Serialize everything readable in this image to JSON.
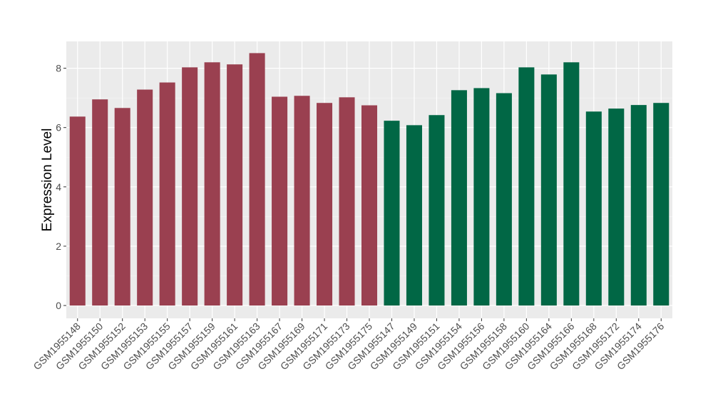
{
  "chart_data": {
    "type": "bar",
    "title": "",
    "xlabel": "",
    "ylabel": "Expression Level",
    "ylim": [
      -0.3,
      8.9
    ],
    "yticks": [
      0,
      2,
      4,
      6,
      8
    ],
    "grid": true,
    "legend": "none",
    "categories": [
      "GSM1955148",
      "GSM1955150",
      "GSM1955152",
      "GSM1955153",
      "GSM1955155",
      "GSM1955157",
      "GSM1955159",
      "GSM1955161",
      "GSM1955163",
      "GSM1955167",
      "GSM1955169",
      "GSM1955171",
      "GSM1955173",
      "GSM1955175",
      "GSM1955147",
      "GSM1955149",
      "GSM1955151",
      "GSM1955154",
      "GSM1955156",
      "GSM1955158",
      "GSM1955160",
      "GSM1955164",
      "GSM1955166",
      "GSM1955168",
      "GSM1955172",
      "GSM1955174",
      "GSM1955176"
    ],
    "values": [
      6.37,
      6.95,
      6.66,
      7.28,
      7.52,
      8.03,
      8.2,
      8.13,
      8.51,
      7.04,
      7.07,
      6.83,
      7.02,
      6.75,
      6.23,
      6.08,
      6.42,
      7.26,
      7.33,
      7.16,
      8.03,
      7.79,
      8.2,
      6.54,
      6.64,
      6.76,
      6.83
    ],
    "groups": [
      0,
      0,
      0,
      0,
      0,
      0,
      0,
      0,
      0,
      0,
      0,
      0,
      0,
      0,
      1,
      1,
      1,
      1,
      1,
      1,
      1,
      1,
      1,
      1,
      1,
      1,
      1
    ],
    "group_colors": [
      "#9a4050",
      "#016745"
    ]
  }
}
